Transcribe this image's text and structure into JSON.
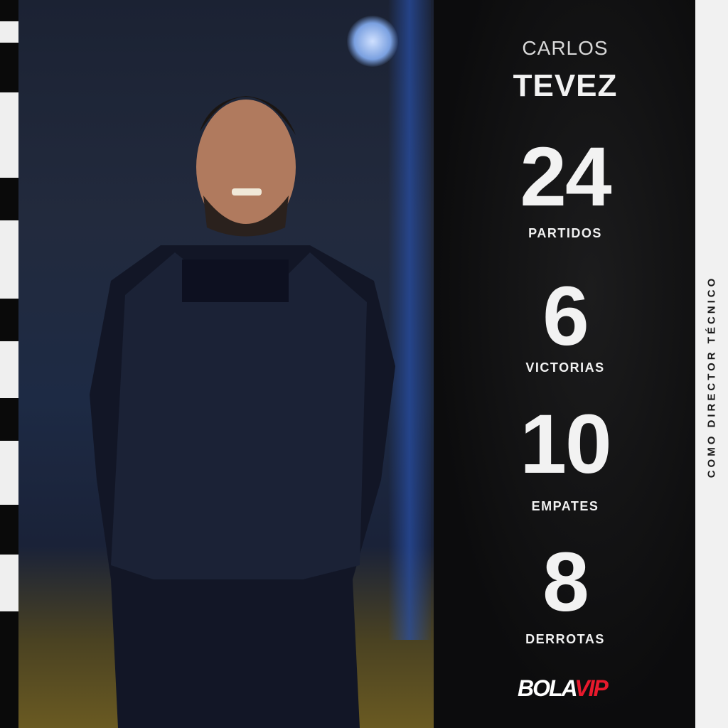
{
  "player": {
    "first_name": "CARLOS",
    "last_name": "TEVEZ"
  },
  "stats": [
    {
      "value": "24",
      "label": "PARTIDOS"
    },
    {
      "value": "6",
      "label": "VICTORIAS"
    },
    {
      "value": "10",
      "label": "EMPATES"
    },
    {
      "value": "8",
      "label": "DERROTAS"
    }
  ],
  "side_caption": "COMO DIRECTOR TÉCNICO",
  "logo": {
    "part1": "BOLA",
    "part2": "VIP",
    "color1": "#ffffff",
    "color2": "#e8192c"
  }
}
